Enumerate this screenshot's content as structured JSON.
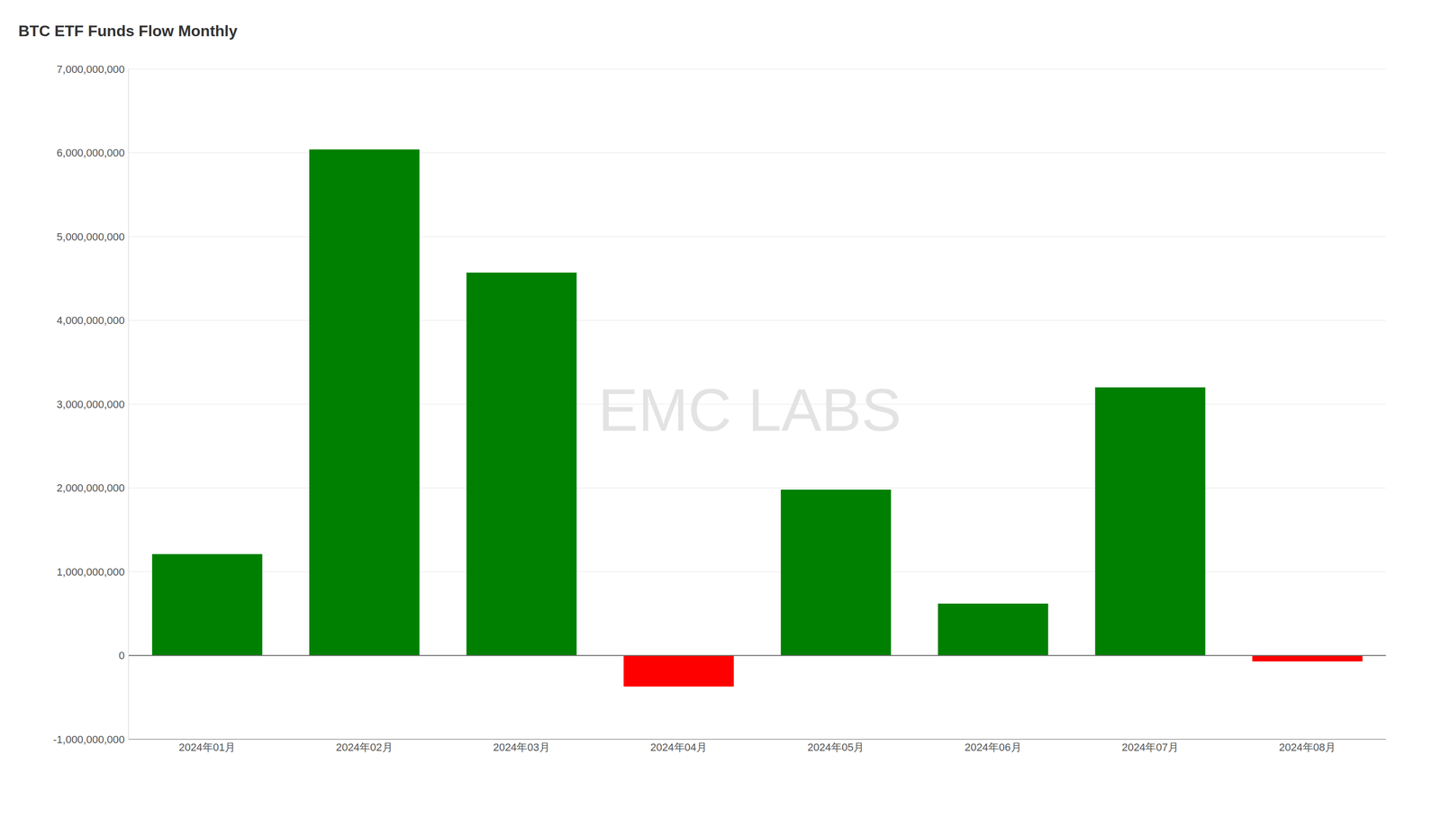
{
  "chart_data": {
    "type": "bar",
    "title": "BTC ETF Funds Flow Monthly",
    "annotations": [
      "EMC LABS"
    ],
    "categories": [
      "2024年01月",
      "2024年02月",
      "2024年03月",
      "2024年04月",
      "2024年05月",
      "2024年06月",
      "2024年07月",
      "2024年08月"
    ],
    "values": [
      1210000000,
      6040000000,
      4570000000,
      -370000000,
      1980000000,
      620000000,
      3200000000,
      -70000000
    ],
    "colors": [
      "#008000",
      "#008000",
      "#008000",
      "#ff0000",
      "#008000",
      "#008000",
      "#008000",
      "#ff0000"
    ],
    "ylim": [
      -1000000000,
      7000000000
    ],
    "yticks": [
      {
        "value": -1000000000,
        "label": "-1,000,000,000"
      },
      0,
      {
        "value": 1000000000,
        "label": "1,000,000,000"
      },
      {
        "value": 2000000000,
        "label": "2,000,000,000"
      },
      {
        "value": 3000000000,
        "label": "3,000,000,000"
      },
      {
        "value": 4000000000,
        "label": "4,000,000,000"
      },
      {
        "value": 5000000000,
        "label": "5,000,000,000"
      },
      {
        "value": 6000000000,
        "label": "6,000,000,000"
      },
      {
        "value": 7000000000,
        "label": "7,000,000,000"
      }
    ],
    "grid": true
  }
}
